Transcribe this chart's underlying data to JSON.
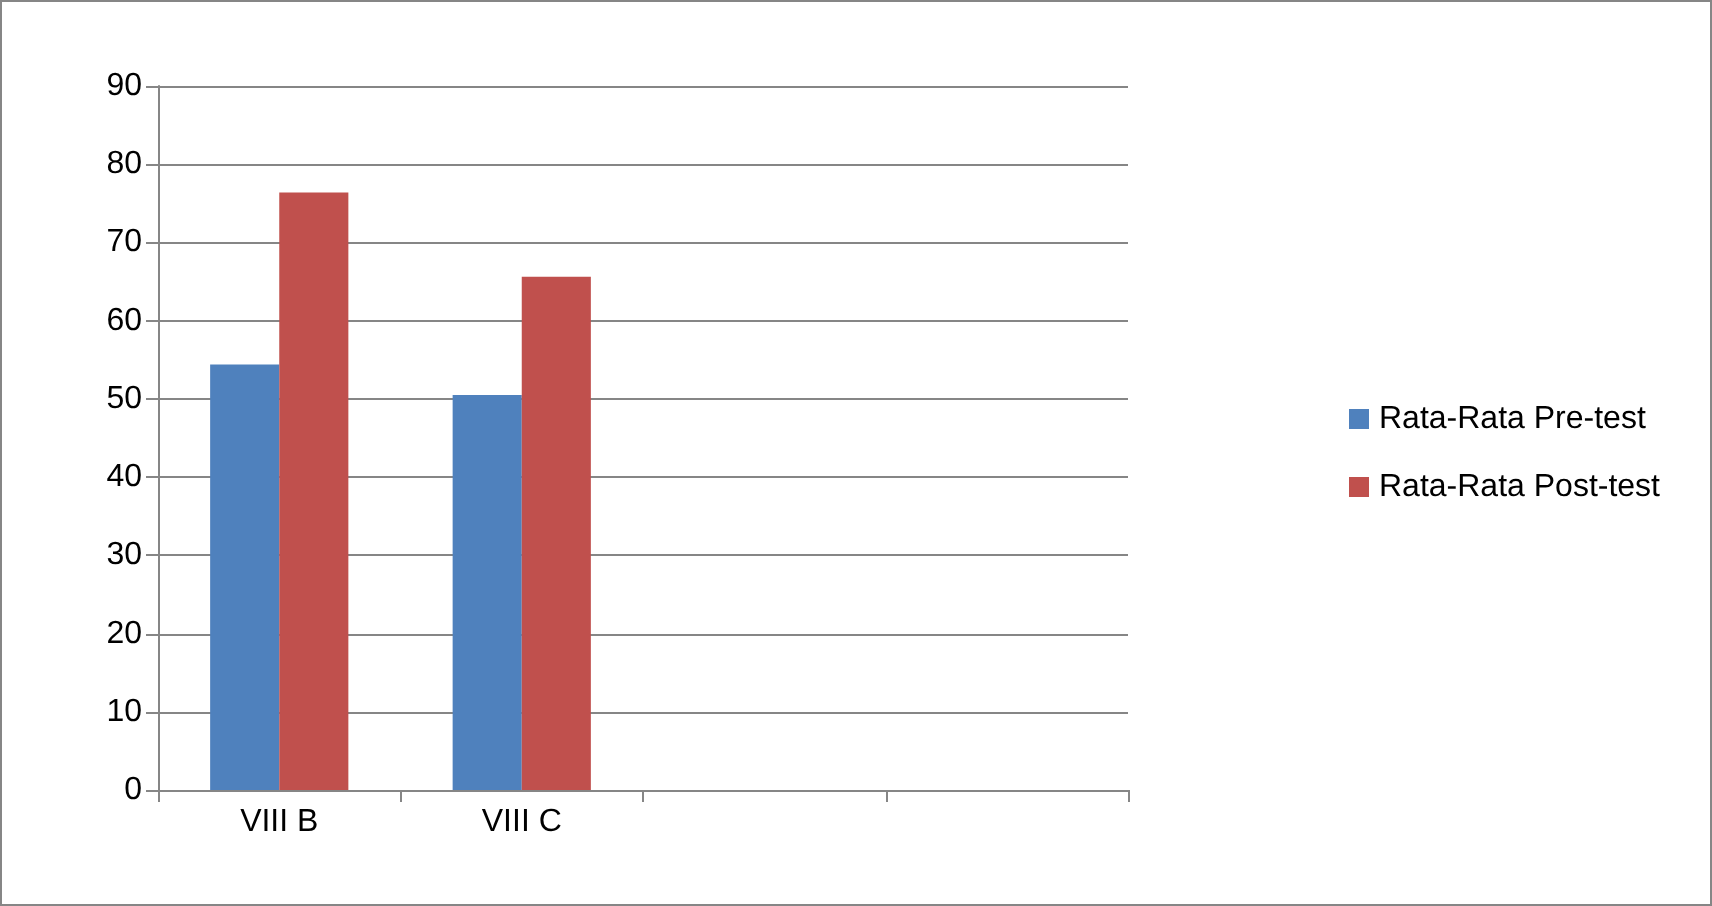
{
  "chart_data": {
    "type": "bar",
    "categories": [
      "VIII B",
      "VIII C",
      null,
      null
    ],
    "series": [
      {
        "name": "Rata-Rata Pre-test",
        "color": "#4f81bd",
        "values": [
          54.4,
          50.5,
          null,
          null
        ]
      },
      {
        "name": "Rata-Rata Post-test",
        "color": "#c0504d",
        "values": [
          76.4,
          65.6,
          null,
          null
        ]
      }
    ],
    "ylim": [
      0,
      90
    ],
    "yticks": [
      0,
      10,
      20,
      30,
      40,
      50,
      60,
      70,
      80,
      90
    ],
    "grid": "y",
    "legend": "right"
  }
}
